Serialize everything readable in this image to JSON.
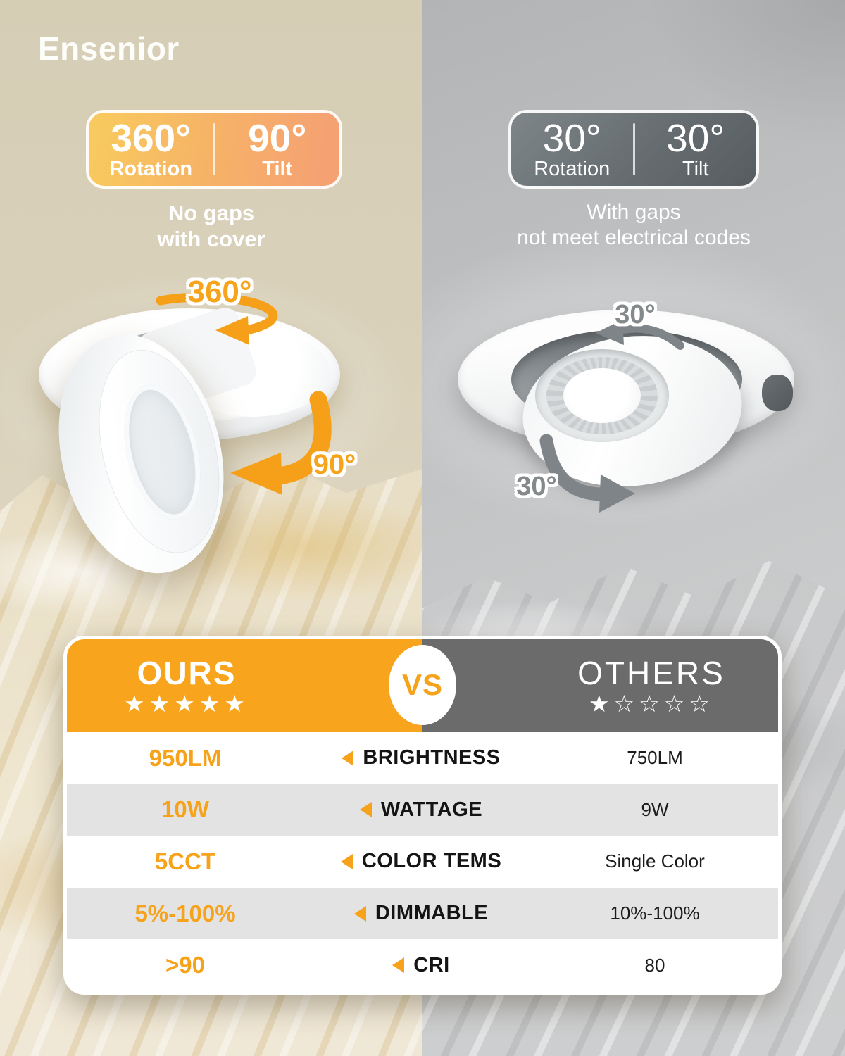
{
  "brand": "Ensenior",
  "left_panel": {
    "badge": {
      "rotation_value": "360°",
      "rotation_label": "Rotation",
      "tilt_value": "90°",
      "tilt_label": "Tilt"
    },
    "caption_line1": "No gaps",
    "caption_line2": "with cover",
    "photo_rotation_label": "360°",
    "photo_tilt_label": "90°"
  },
  "right_panel": {
    "badge": {
      "rotation_value": "30°",
      "rotation_label": "Rotation",
      "tilt_value": "30°",
      "tilt_label": "Tilt"
    },
    "caption_line1": "With gaps",
    "caption_line2": "not meet electrical codes",
    "photo_rotation_label": "30°",
    "photo_tilt_label": "30°"
  },
  "comparison_table": {
    "ours_header": "OURS",
    "vs_label": "VS",
    "others_header": "OTHERS",
    "ours_rating": 5,
    "others_rating": 1,
    "rating_max": 5,
    "rows": [
      {
        "ours": "950LM",
        "feature": "BRIGHTNESS",
        "others": "750LM"
      },
      {
        "ours": "10W",
        "feature": "WATTAGE",
        "others": "9W"
      },
      {
        "ours": "5CCT",
        "feature": "COLOR TEMS",
        "others": "Single Color"
      },
      {
        "ours": "5%-100%",
        "feature": "DIMMABLE",
        "others": "10%-100%"
      },
      {
        "ours": ">90",
        "feature": "CRI",
        "others": "80"
      }
    ]
  },
  "colors": {
    "accent_orange": "#F6A21B",
    "header_orange": "#F8A41C",
    "header_gray": "#6B6B6B",
    "row_alt_gray": "#E3E3E4",
    "left_bg_beige": "#D6CDB5",
    "right_bg_gray": "#B6B8BA"
  }
}
